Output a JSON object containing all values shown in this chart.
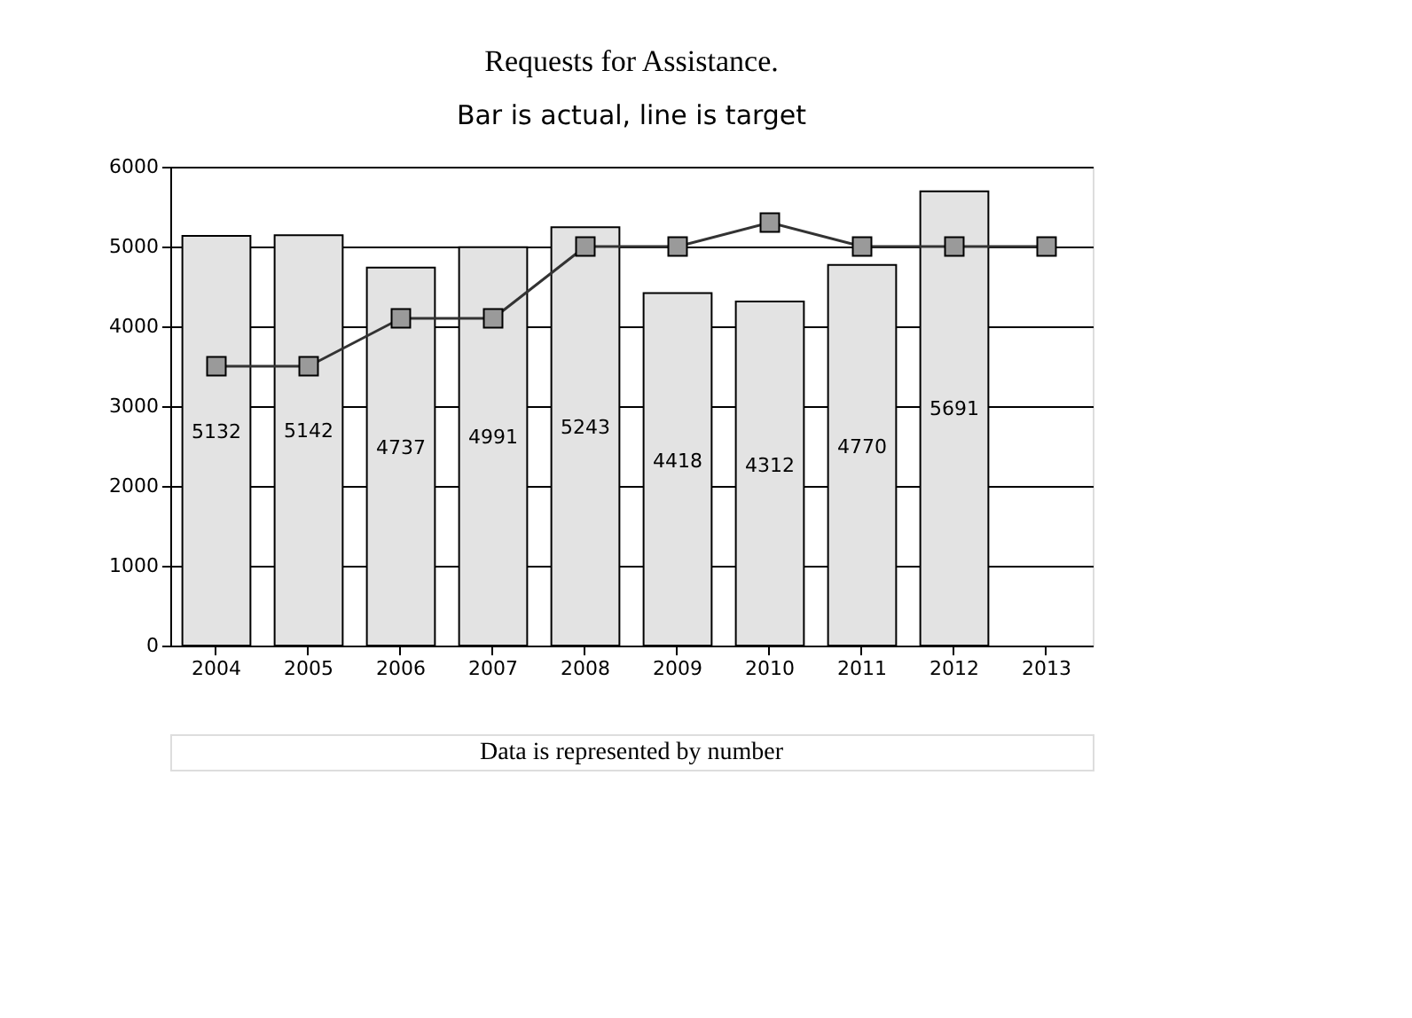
{
  "chart_data": {
    "type": "bar",
    "title": "Requests for Assistance.",
    "subtitle": "Bar is actual, line is target",
    "categories": [
      "2004",
      "2005",
      "2006",
      "2007",
      "2008",
      "2009",
      "2010",
      "2011",
      "2012",
      "2013"
    ],
    "series": [
      {
        "color": "#e3e3e3",
        "values": [
          5132,
          5142,
          4737,
          4991,
          5243,
          4418,
          4312,
          4770,
          5691,
          null
        ],
        "value_labels": [
          "5132",
          "5142",
          "4737",
          "4991",
          "5243",
          "4418",
          "4312",
          "4770",
          "5691",
          null
        ]
      },
      {
        "type": "line",
        "color": "#333333",
        "marker": "square",
        "values": [
          3500,
          3500,
          4100,
          4100,
          5000,
          5000,
          5300,
          5000,
          5000,
          5000
        ]
      }
    ],
    "ylim": [
      0,
      6000
    ],
    "yticks": [
      0,
      1000,
      2000,
      3000,
      4000,
      5000,
      6000
    ],
    "grid": "y",
    "annotations": [
      "Data is represented by number"
    ]
  }
}
